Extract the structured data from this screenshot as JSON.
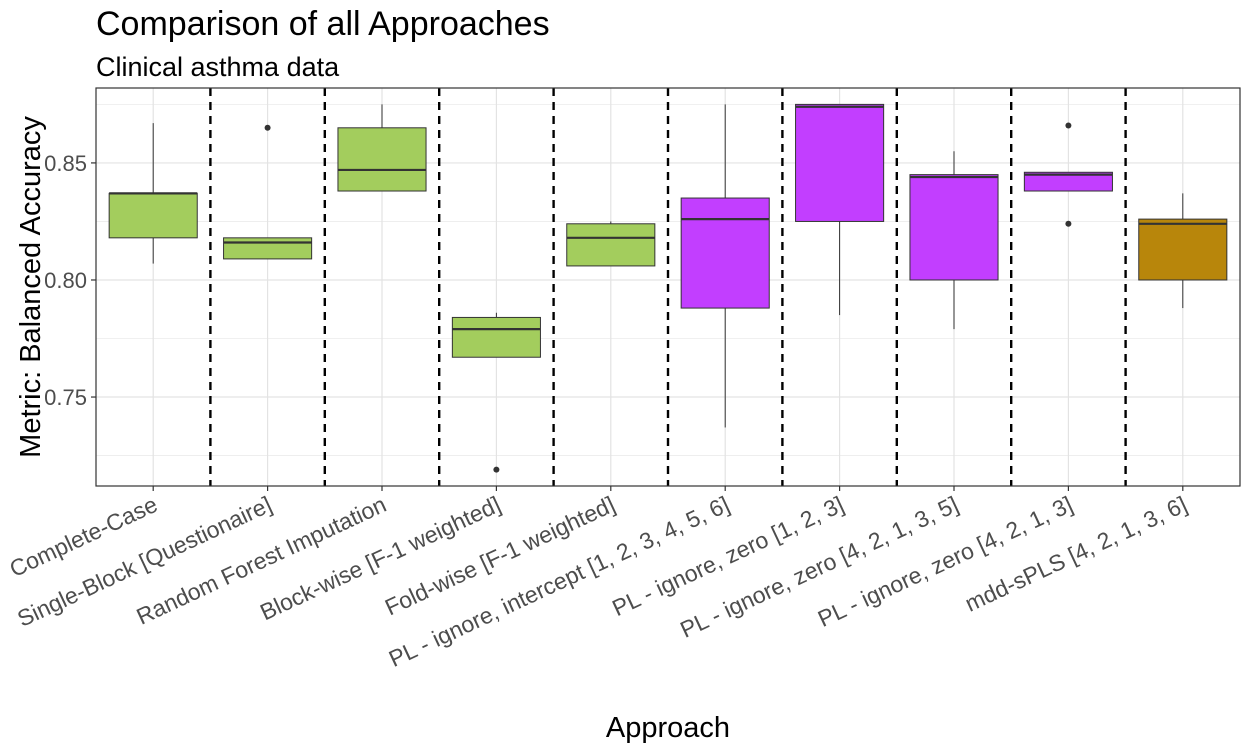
{
  "chart_data": {
    "type": "boxplot",
    "title": "Comparison of all Approaches",
    "subtitle": "Clinical asthma data",
    "xlabel": "Approach",
    "ylabel": "Metric: Balanced Accuracy",
    "ylim": [
      0.712,
      0.882
    ],
    "yticks": [
      0.75,
      0.8,
      0.85
    ],
    "ytick_labels": [
      "0.75",
      "0.80",
      "0.85"
    ],
    "grid": true,
    "separators": "dashed vertical lines between approaches",
    "categories": [
      "Complete-Case",
      "Single-Block [Questionaire]",
      "Random Forest Imputation",
      "Block-wise [F-1 weighted]",
      "Fold-wise [F-1 weighted]",
      "PL - ignore, intercept [1, 2, 3, 4, 5, 6]",
      "PL - ignore, zero [1, 2, 3]",
      "PL - ignore, zero [4, 2, 1, 3, 5]",
      "PL - ignore, zero [4, 2, 1, 3]",
      "mdd-sPLS [4, 2, 1, 3, 6]"
    ],
    "boxes": [
      {
        "whisker_low": 0.807,
        "q1": 0.818,
        "median": 0.837,
        "q3": 0.837,
        "whisker_high": 0.867,
        "outliers": [],
        "color": "#a3cd5d"
      },
      {
        "whisker_low": 0.809,
        "q1": 0.809,
        "median": 0.816,
        "q3": 0.818,
        "whisker_high": 0.818,
        "outliers": [
          0.865
        ],
        "color": "#a3cd5d"
      },
      {
        "whisker_low": 0.838,
        "q1": 0.838,
        "median": 0.847,
        "q3": 0.865,
        "whisker_high": 0.875,
        "outliers": [],
        "color": "#a3cd5d"
      },
      {
        "whisker_low": 0.767,
        "q1": 0.767,
        "median": 0.779,
        "q3": 0.784,
        "whisker_high": 0.786,
        "outliers": [
          0.719
        ],
        "color": "#a3cd5d"
      },
      {
        "whisker_low": 0.806,
        "q1": 0.806,
        "median": 0.818,
        "q3": 0.824,
        "whisker_high": 0.825,
        "outliers": [],
        "color": "#a3cd5d"
      },
      {
        "whisker_low": 0.737,
        "q1": 0.788,
        "median": 0.826,
        "q3": 0.835,
        "whisker_high": 0.875,
        "outliers": [],
        "color": "#c23eff"
      },
      {
        "whisker_low": 0.785,
        "q1": 0.825,
        "median": 0.874,
        "q3": 0.875,
        "whisker_high": 0.875,
        "outliers": [],
        "color": "#c23eff"
      },
      {
        "whisker_low": 0.779,
        "q1": 0.8,
        "median": 0.844,
        "q3": 0.845,
        "whisker_high": 0.855,
        "outliers": [],
        "color": "#c23eff"
      },
      {
        "whisker_low": 0.838,
        "q1": 0.838,
        "median": 0.845,
        "q3": 0.846,
        "whisker_high": 0.846,
        "outliers": [
          0.866,
          0.824
        ],
        "color": "#c23eff"
      },
      {
        "whisker_low": 0.788,
        "q1": 0.8,
        "median": 0.824,
        "q3": 0.826,
        "whisker_high": 0.837,
        "outliers": [],
        "color": "#b8860b"
      }
    ]
  }
}
